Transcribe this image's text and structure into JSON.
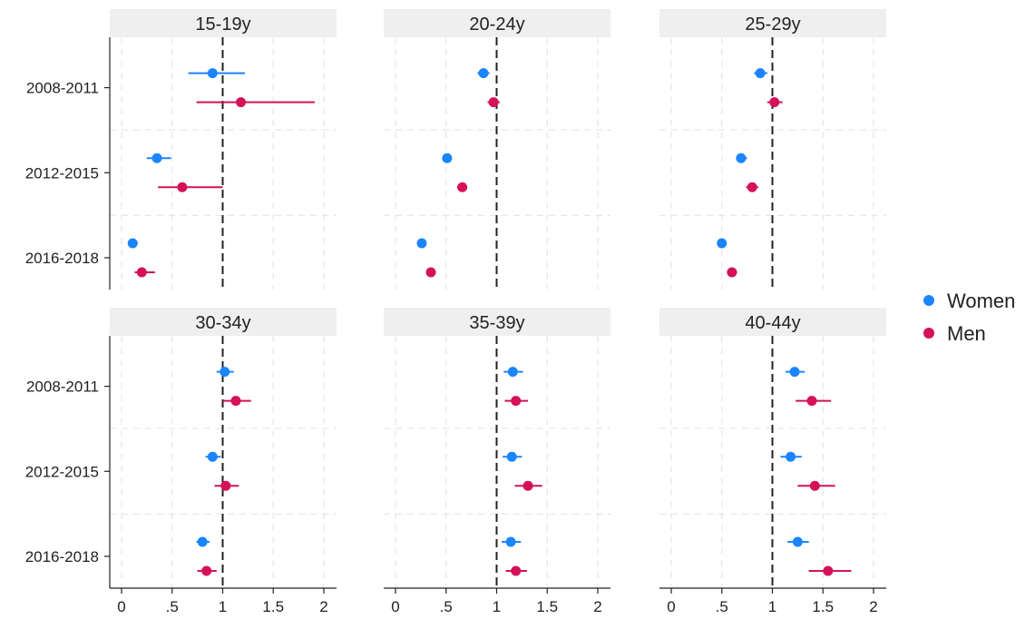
{
  "chart_data": {
    "type": "scatter",
    "subtype": "dot-and-whisker, faceted 2x3",
    "row_categories": [
      "2008-2011",
      "2012-2015",
      "2016-2018"
    ],
    "x_ticks": [
      0,
      0.5,
      1,
      1.5,
      2
    ],
    "x_tick_labels": [
      "0",
      ".5",
      "1",
      "1.5",
      "2"
    ],
    "xlim": [
      -0.1,
      2.1
    ],
    "reference_line": 1,
    "grid": true,
    "legend_position": "right",
    "series": [
      {
        "key": "women",
        "name": "Women",
        "color": "#1a85ff"
      },
      {
        "key": "men",
        "name": "Men",
        "color": "#d41159"
      }
    ],
    "panels": [
      {
        "title": "15-19y",
        "women": [
          {
            "period": "2008-2011",
            "value": 0.9,
            "low": 0.66,
            "high": 1.22
          },
          {
            "period": "2012-2015",
            "value": 0.35,
            "low": 0.25,
            "high": 0.49
          },
          {
            "period": "2016-2018",
            "value": 0.11,
            "low": 0.07,
            "high": 0.16
          }
        ],
        "men": [
          {
            "period": "2008-2011",
            "value": 1.18,
            "low": 0.74,
            "high": 1.91
          },
          {
            "period": "2012-2015",
            "value": 0.6,
            "low": 0.36,
            "high": 1.0
          },
          {
            "period": "2016-2018",
            "value": 0.2,
            "low": 0.13,
            "high": 0.33
          }
        ]
      },
      {
        "title": "20-24y",
        "women": [
          {
            "period": "2008-2011",
            "value": 0.87,
            "low": 0.81,
            "high": 0.93
          },
          {
            "period": "2012-2015",
            "value": 0.51,
            "low": 0.47,
            "high": 0.55
          },
          {
            "period": "2016-2018",
            "value": 0.26,
            "low": 0.24,
            "high": 0.29
          }
        ],
        "men": [
          {
            "period": "2008-2011",
            "value": 0.97,
            "low": 0.91,
            "high": 1.03
          },
          {
            "period": "2012-2015",
            "value": 0.66,
            "low": 0.61,
            "high": 0.71
          },
          {
            "period": "2016-2018",
            "value": 0.35,
            "low": 0.32,
            "high": 0.38
          }
        ]
      },
      {
        "title": "25-29y",
        "women": [
          {
            "period": "2008-2011",
            "value": 0.88,
            "low": 0.82,
            "high": 0.95
          },
          {
            "period": "2012-2015",
            "value": 0.69,
            "low": 0.64,
            "high": 0.75
          },
          {
            "period": "2016-2018",
            "value": 0.5,
            "low": 0.46,
            "high": 0.54
          }
        ],
        "men": [
          {
            "period": "2008-2011",
            "value": 1.02,
            "low": 0.95,
            "high": 1.1
          },
          {
            "period": "2012-2015",
            "value": 0.8,
            "low": 0.74,
            "high": 0.86
          },
          {
            "period": "2016-2018",
            "value": 0.6,
            "low": 0.56,
            "high": 0.65
          }
        ]
      },
      {
        "title": "30-34y",
        "women": [
          {
            "period": "2008-2011",
            "value": 1.02,
            "low": 0.94,
            "high": 1.11
          },
          {
            "period": "2012-2015",
            "value": 0.9,
            "low": 0.83,
            "high": 0.98
          },
          {
            "period": "2016-2018",
            "value": 0.8,
            "low": 0.74,
            "high": 0.87
          }
        ],
        "men": [
          {
            "period": "2008-2011",
            "value": 1.13,
            "low": 1.0,
            "high": 1.28
          },
          {
            "period": "2012-2015",
            "value": 1.03,
            "low": 0.92,
            "high": 1.16
          },
          {
            "period": "2016-2018",
            "value": 0.84,
            "low": 0.75,
            "high": 0.94
          }
        ]
      },
      {
        "title": "35-39y",
        "women": [
          {
            "period": "2008-2011",
            "value": 1.16,
            "low": 1.07,
            "high": 1.26
          },
          {
            "period": "2012-2015",
            "value": 1.15,
            "low": 1.06,
            "high": 1.25
          },
          {
            "period": "2016-2018",
            "value": 1.14,
            "low": 1.05,
            "high": 1.24
          }
        ],
        "men": [
          {
            "period": "2008-2011",
            "value": 1.19,
            "low": 1.08,
            "high": 1.31
          },
          {
            "period": "2012-2015",
            "value": 1.31,
            "low": 1.18,
            "high": 1.45
          },
          {
            "period": "2016-2018",
            "value": 1.19,
            "low": 1.09,
            "high": 1.3
          }
        ]
      },
      {
        "title": "40-44y",
        "women": [
          {
            "period": "2008-2011",
            "value": 1.22,
            "low": 1.13,
            "high": 1.32
          },
          {
            "period": "2012-2015",
            "value": 1.18,
            "low": 1.08,
            "high": 1.29
          },
          {
            "period": "2016-2018",
            "value": 1.25,
            "low": 1.15,
            "high": 1.36
          }
        ],
        "men": [
          {
            "period": "2008-2011",
            "value": 1.39,
            "low": 1.23,
            "high": 1.58
          },
          {
            "period": "2012-2015",
            "value": 1.42,
            "low": 1.25,
            "high": 1.62
          },
          {
            "period": "2016-2018",
            "value": 1.55,
            "low": 1.36,
            "high": 1.78
          }
        ]
      }
    ]
  }
}
